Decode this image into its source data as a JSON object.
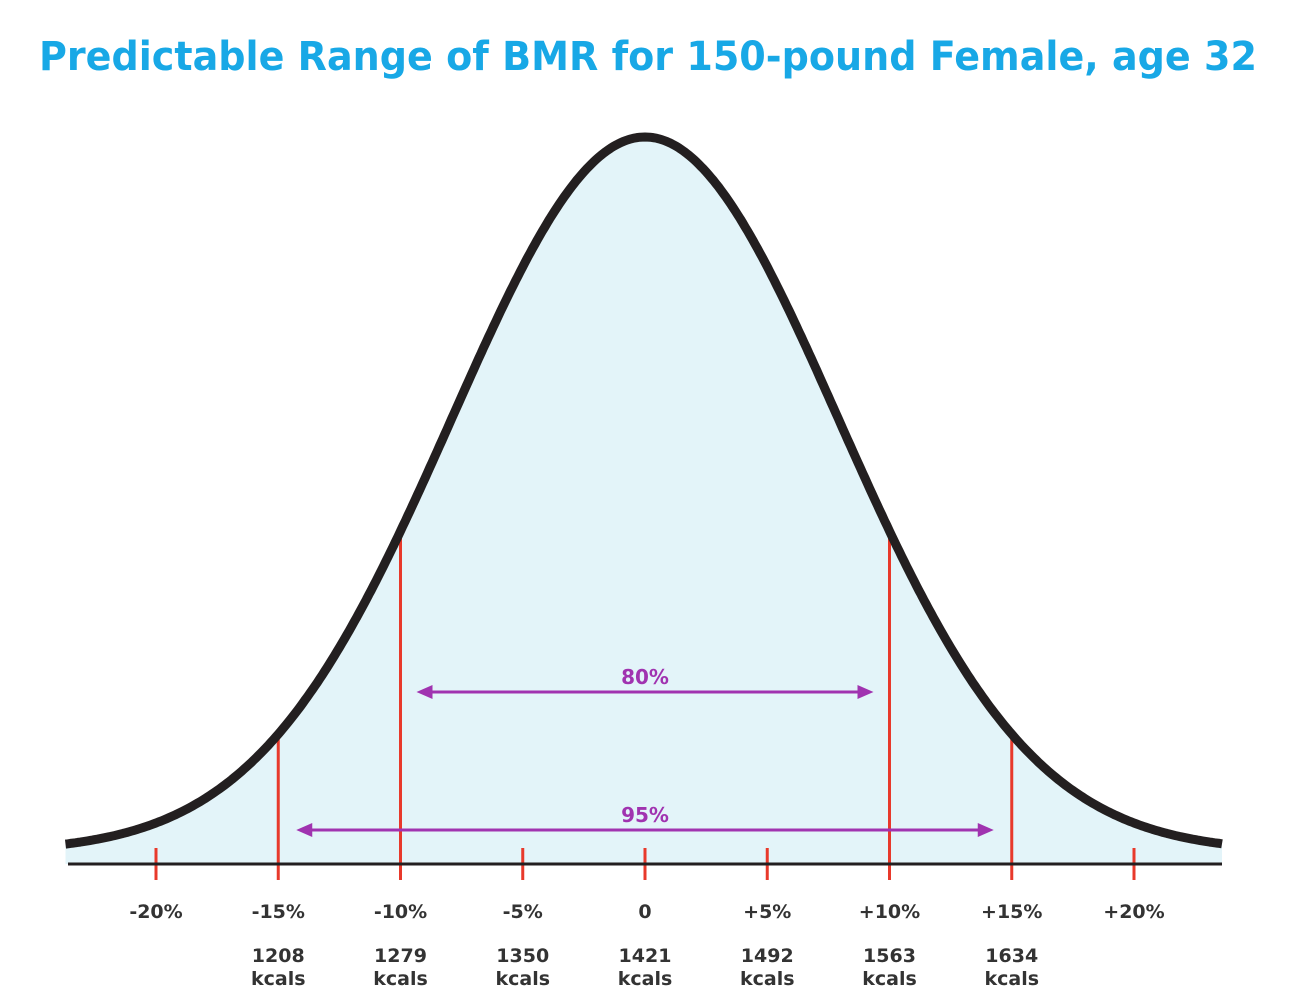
{
  "chart_data": {
    "type": "area",
    "title": "Predictable Range of BMR for 150-pound Female, age 32",
    "x_ticks": [
      {
        "pct": -20,
        "label": "-20%"
      },
      {
        "pct": -15,
        "label": "-15%",
        "kcal": "1208",
        "unit": "kcals"
      },
      {
        "pct": -10,
        "label": "-10%",
        "kcal": "1279",
        "unit": "kcals"
      },
      {
        "pct": -5,
        "label": "-5%",
        "kcal": "1350",
        "unit": "kcals"
      },
      {
        "pct": 0,
        "label": "0",
        "kcal": "1421",
        "unit": "kcals"
      },
      {
        "pct": 5,
        "label": "+5%",
        "kcal": "1492",
        "unit": "kcals"
      },
      {
        "pct": 10,
        "label": "+10%",
        "kcal": "1563",
        "unit": "kcals"
      },
      {
        "pct": 15,
        "label": "+15%",
        "kcal": "1634",
        "unit": "kcals"
      },
      {
        "pct": 20,
        "label": "+20%"
      }
    ],
    "xlim": [
      -20,
      20
    ],
    "distribution": {
      "shape": "normal",
      "mean": 0
    },
    "ranges": [
      {
        "label": "80%",
        "from": -10,
        "to": 10
      },
      {
        "label": "95%",
        "from": -15,
        "to": 15
      }
    ],
    "colors": {
      "title": "#18a8e6",
      "fill": "#e3f4f9",
      "curve": "#231f20",
      "tick": "#e8392b",
      "arrow": "#a033b0",
      "text": "#333333"
    }
  }
}
